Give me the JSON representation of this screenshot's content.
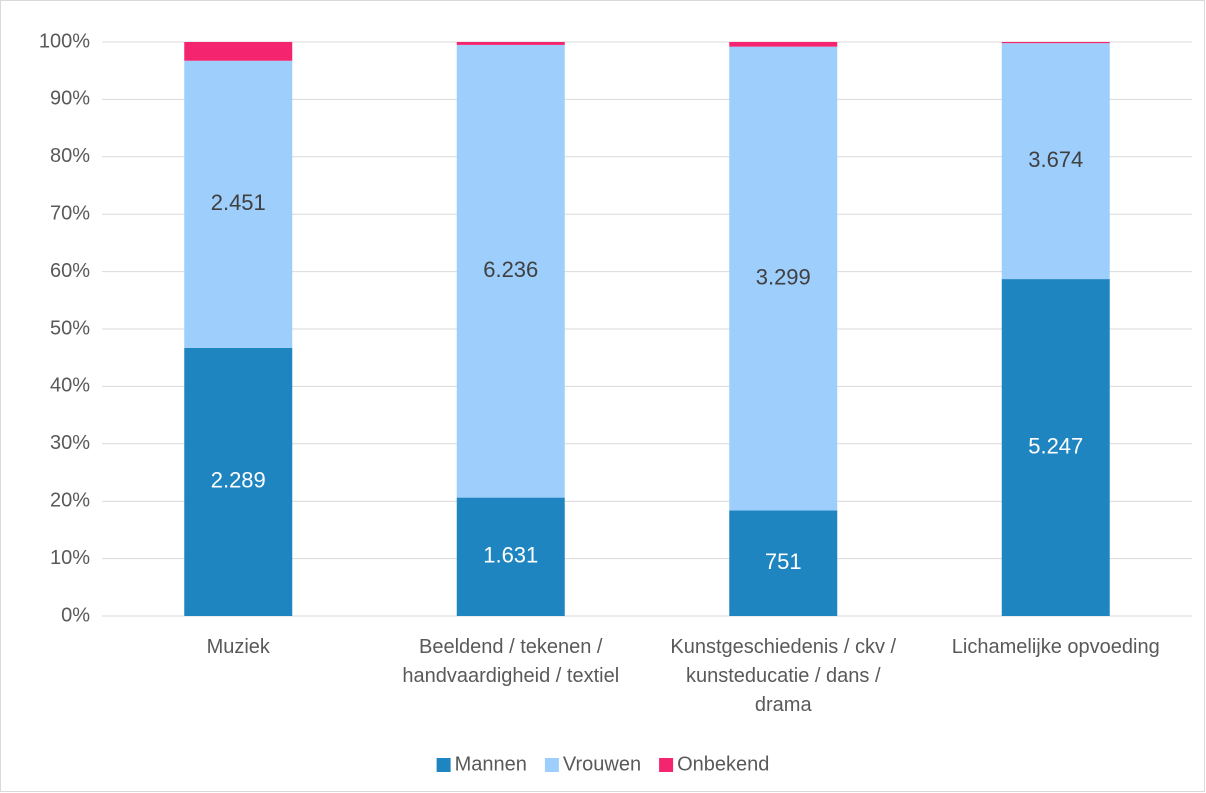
{
  "chart_data": {
    "type": "bar",
    "stacked": "percent",
    "categories": [
      "Muziek",
      "Beeldend / tekenen / handvaardigheid / textiel",
      "Kunstgeschiedenis / ckv / kunsteducatie / dans / drama",
      "Lichamelijke opvoeding"
    ],
    "series": [
      {
        "name": "Mannen",
        "color": "#1f85c0",
        "label_color": "#ffffff",
        "values": [
          2289,
          1631,
          751,
          5247
        ],
        "value_labels": [
          "2.289",
          "1.631",
          "751",
          "5.247"
        ]
      },
      {
        "name": "Vrouwen",
        "color": "#9dcefc",
        "label_color": "#404040",
        "values": [
          2451,
          6236,
          3299,
          3674
        ],
        "value_labels": [
          "2.451",
          "6.236",
          "3.299",
          "3.674"
        ]
      },
      {
        "name": "Onbekend",
        "color": "#f5246e",
        "values": [
          160,
          40,
          33,
          18
        ]
      }
    ],
    "ylim": [
      0,
      100
    ],
    "yticks": [
      {
        "value": 0,
        "label": "0%"
      },
      {
        "value": 10,
        "label": "10%"
      },
      {
        "value": 20,
        "label": "20%"
      },
      {
        "value": 30,
        "label": "30%"
      },
      {
        "value": 40,
        "label": "40%"
      },
      {
        "value": 50,
        "label": "50%"
      },
      {
        "value": 60,
        "label": "60%"
      },
      {
        "value": 70,
        "label": "70%"
      },
      {
        "value": 80,
        "label": "80%"
      },
      {
        "value": 90,
        "label": "90%"
      },
      {
        "value": 100,
        "label": "100%"
      }
    ],
    "grid": true,
    "legend": "bottom"
  }
}
